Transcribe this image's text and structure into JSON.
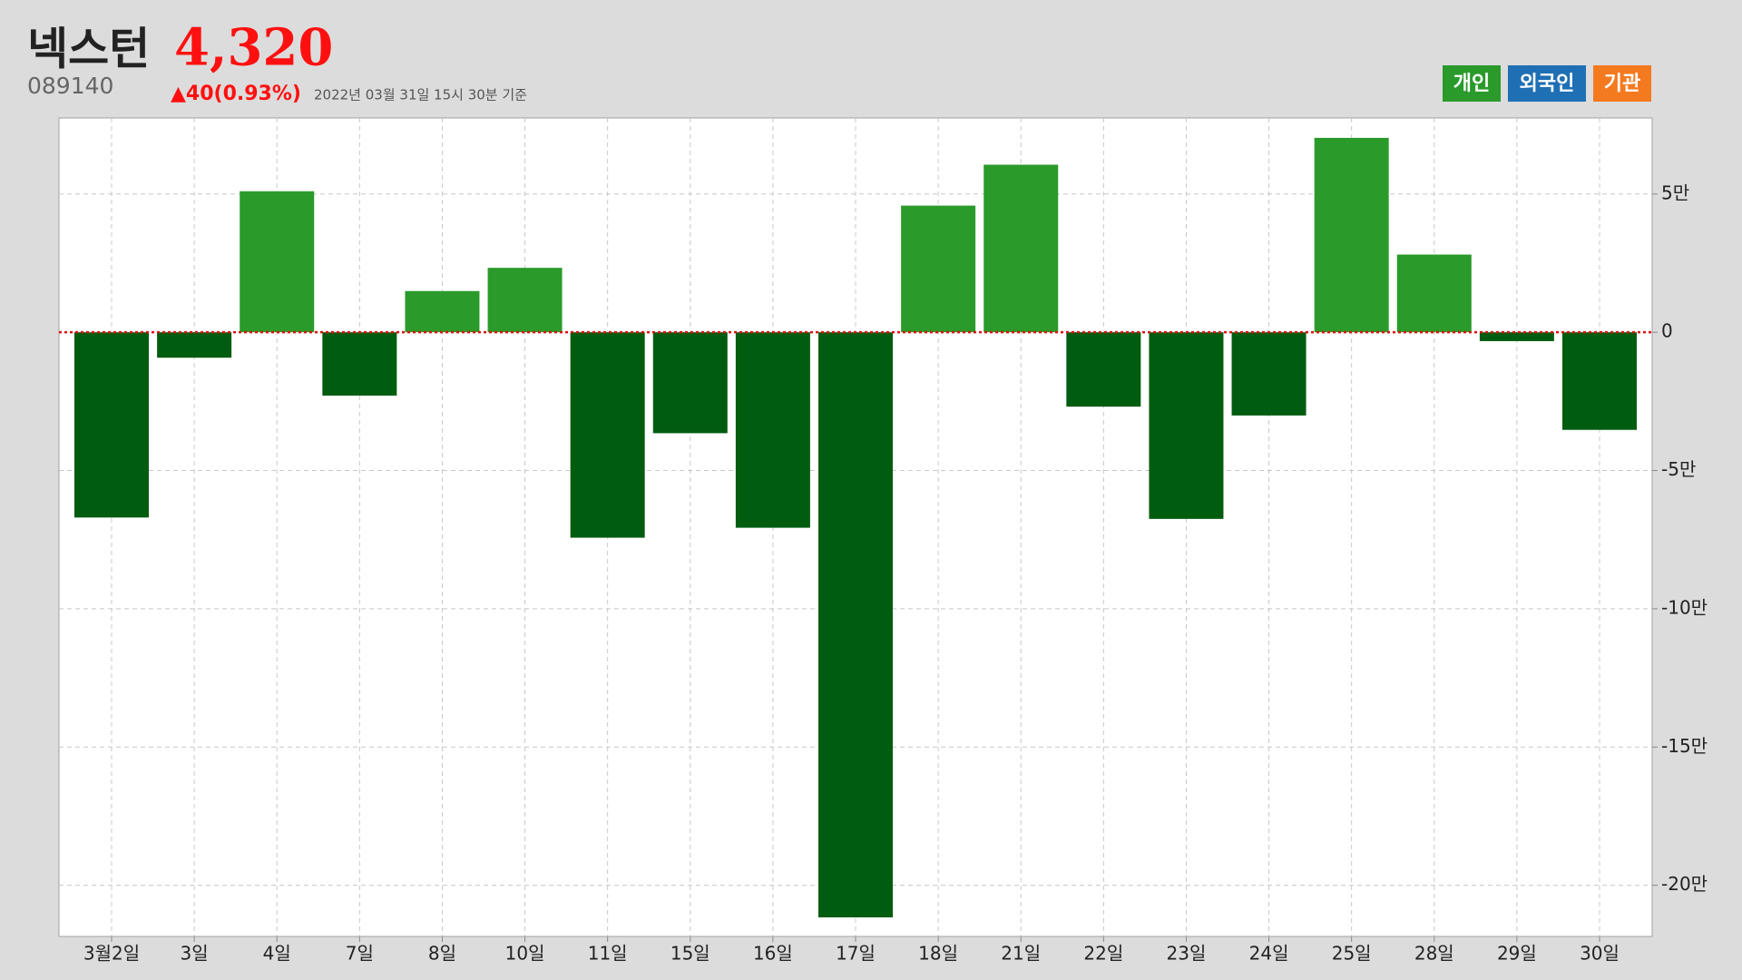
{
  "header": {
    "title": "넥스턴",
    "price": "4,320",
    "code": "089140",
    "change": "▲40(0.93%)",
    "timestamp": "2022년 03월 31일 15시 30분 기준"
  },
  "toggles": [
    {
      "label": "개인",
      "color": "#2a9a2a"
    },
    {
      "label": "외국인",
      "color": "#1f6fb4"
    },
    {
      "label": "기관",
      "color": "#f47a20"
    }
  ],
  "chart_data": {
    "type": "bar",
    "categories": [
      "3월2일",
      "3일",
      "4일",
      "7일",
      "8일",
      "10일",
      "11일",
      "15일",
      "16일",
      "17일",
      "18일",
      "21일",
      "22일",
      "23일",
      "24일",
      "25일",
      "28일",
      "29일",
      "30일"
    ],
    "series": [
      {
        "name": "개인",
        "color": "#2a9a2a",
        "negative_color": "#005c0f",
        "values": [
          -67000,
          -9200,
          51000,
          -22900,
          14900,
          23300,
          -74300,
          -36500,
          -70700,
          -211600,
          45800,
          60600,
          -26900,
          -67500,
          -30100,
          70300,
          28100,
          -3200,
          -35300
        ]
      }
    ],
    "ylim": [
      -218500,
      77500
    ],
    "yticks": [
      {
        "value": 50000,
        "label": "5만"
      },
      0,
      {
        "value": -50000,
        "label": "-5만"
      },
      {
        "value": -100000,
        "label": "-10만"
      },
      {
        "value": -150000,
        "label": "-15만"
      },
      {
        "value": -200000,
        "label": "-20만"
      }
    ],
    "grid": true,
    "zero_line_color": "#e01010",
    "y_axis_side": "right"
  }
}
